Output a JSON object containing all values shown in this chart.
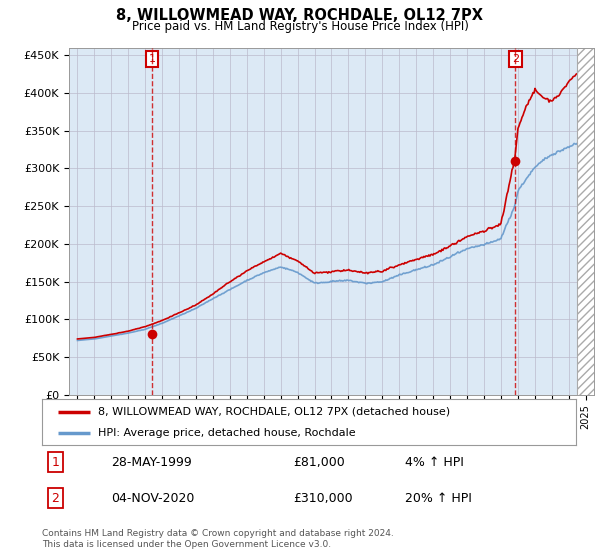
{
  "title": "8, WILLOWMEAD WAY, ROCHDALE, OL12 7PX",
  "subtitle": "Price paid vs. HM Land Registry's House Price Index (HPI)",
  "ylabel_ticks": [
    "£0",
    "£50K",
    "£100K",
    "£150K",
    "£200K",
    "£250K",
    "£300K",
    "£350K",
    "£400K",
    "£450K"
  ],
  "ytick_values": [
    0,
    50000,
    100000,
    150000,
    200000,
    250000,
    300000,
    350000,
    400000,
    450000
  ],
  "ylim": [
    0,
    460000
  ],
  "xlim_start": 1994.5,
  "xlim_end": 2025.5,
  "purchase1": {
    "date": 1999.4,
    "price": 81000,
    "label": "1"
  },
  "purchase2": {
    "date": 2020.85,
    "price": 310000,
    "label": "2"
  },
  "legend_line1": "8, WILLOWMEAD WAY, ROCHDALE, OL12 7PX (detached house)",
  "legend_line2": "HPI: Average price, detached house, Rochdale",
  "table_row1": [
    "1",
    "28-MAY-1999",
    "£81,000",
    "4% ↑ HPI"
  ],
  "table_row2": [
    "2",
    "04-NOV-2020",
    "£310,000",
    "20% ↑ HPI"
  ],
  "footnote": "Contains HM Land Registry data © Crown copyright and database right 2024.\nThis data is licensed under the Open Government Licence v3.0.",
  "hpi_color": "#6699cc",
  "price_color": "#cc0000",
  "marker_vline_color": "#cc0000",
  "chart_bg_color": "#dce9f5",
  "background_color": "#ffffff",
  "grid_color": "#aaaacc",
  "hpi_knots_x": [
    1995,
    1996,
    1997,
    1998,
    1999,
    2000,
    2001,
    2002,
    2003,
    2004,
    2005,
    2006,
    2007,
    2008,
    2009,
    2010,
    2011,
    2012,
    2013,
    2014,
    2015,
    2016,
    2017,
    2018,
    2019,
    2020,
    2020.85,
    2021,
    2021.5,
    2022,
    2022.5,
    2023,
    2023.5,
    2024,
    2024.5
  ],
  "hpi_knots_y": [
    72000,
    74000,
    78000,
    82000,
    87000,
    95000,
    105000,
    115000,
    128000,
    140000,
    152000,
    162000,
    170000,
    162000,
    148000,
    150000,
    152000,
    148000,
    150000,
    158000,
    165000,
    172000,
    182000,
    192000,
    198000,
    205000,
    250000,
    268000,
    285000,
    300000,
    310000,
    318000,
    322000,
    328000,
    332000
  ],
  "price_knots_x": [
    1995,
    1996,
    1997,
    1998,
    1999,
    2000,
    2001,
    2002,
    2003,
    2004,
    2005,
    2006,
    2007,
    2008,
    2009,
    2010,
    2011,
    2012,
    2013,
    2014,
    2015,
    2016,
    2017,
    2018,
    2019,
    2020,
    2020.85,
    2021,
    2021.5,
    2022,
    2022.5,
    2023,
    2023.5,
    2024,
    2024.5
  ],
  "price_knots_y": [
    74000,
    76000,
    80000,
    84000,
    90000,
    98000,
    108000,
    118000,
    132000,
    148000,
    162000,
    174000,
    185000,
    175000,
    158000,
    160000,
    162000,
    158000,
    160000,
    168000,
    175000,
    182000,
    194000,
    205000,
    212000,
    220000,
    310000,
    345000,
    375000,
    395000,
    385000,
    380000,
    390000,
    405000,
    415000
  ]
}
